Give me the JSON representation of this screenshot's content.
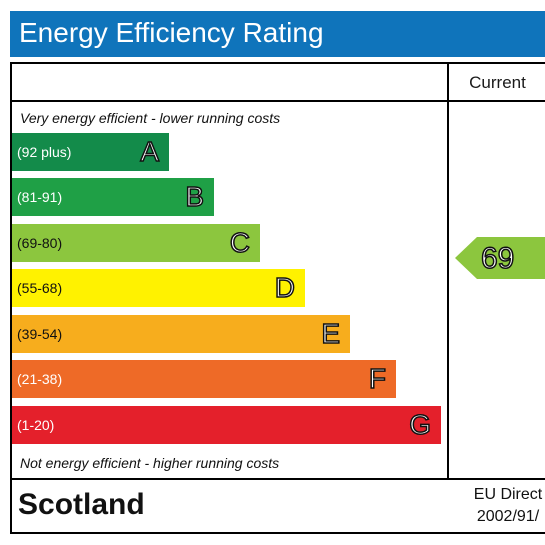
{
  "header": {
    "title": "Energy Efficiency Rating",
    "background": "#0f74bb"
  },
  "columns": {
    "current": "Current"
  },
  "captions": {
    "top": "Very energy efficient - lower running costs",
    "bottom": "Not energy efficient - higher running costs"
  },
  "bands": [
    {
      "range": "(92 plus)",
      "letter": "A",
      "color": "#138b4a"
    },
    {
      "range": "(81-91)",
      "letter": "B",
      "color": "#1fa046"
    },
    {
      "range": "(69-80)",
      "letter": "C",
      "color": "#8cc63e"
    },
    {
      "range": "(55-68)",
      "letter": "D",
      "color": "#fff200"
    },
    {
      "range": "(39-54)",
      "letter": "E",
      "color": "#f7ad1d"
    },
    {
      "range": "(21-38)",
      "letter": "F",
      "color": "#ee6a27"
    },
    {
      "range": "(1-20)",
      "letter": "G",
      "color": "#e4202b"
    }
  ],
  "current_rating": {
    "value": "69",
    "band": "C",
    "color": "#8cc63e"
  },
  "footer": {
    "region": "Scotland",
    "directive_line1": "EU Direct",
    "directive_line2": "2002/91/"
  }
}
